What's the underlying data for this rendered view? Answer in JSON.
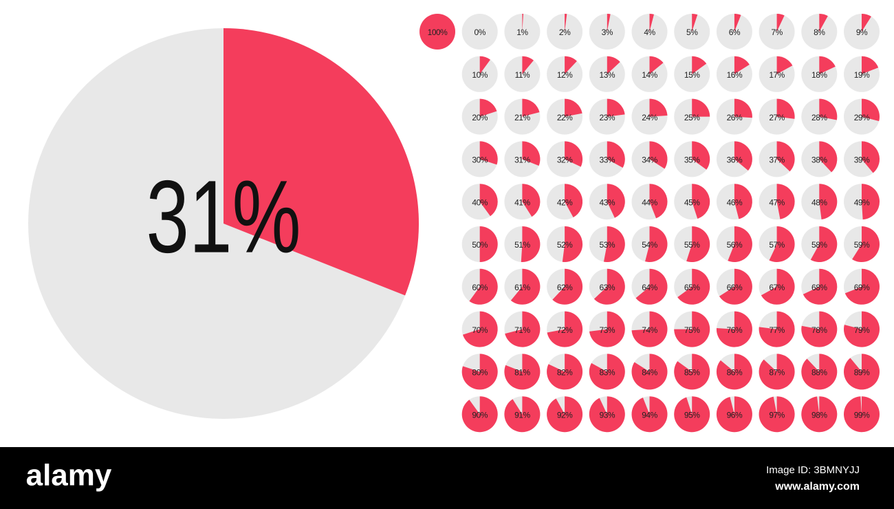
{
  "chart_data": [
    {
      "type": "pie",
      "values": [
        31
      ],
      "value_labels": [
        "31%"
      ],
      "color": "#f43d5c"
    },
    {
      "type": "pie",
      "values": [
        100
      ],
      "value_labels": [
        "100%"
      ],
      "color": "#f43d5c"
    },
    {
      "type": "pie",
      "values": [
        0
      ],
      "value_labels": [
        "0%"
      ],
      "color": "#f43d5c"
    },
    {
      "type": "pie",
      "values": [
        1
      ],
      "value_labels": [
        "1%"
      ],
      "color": "#f43d5c"
    },
    {
      "type": "pie",
      "values": [
        2
      ],
      "value_labels": [
        "2%"
      ],
      "color": "#f43d5c"
    },
    {
      "type": "pie",
      "values": [
        3
      ],
      "value_labels": [
        "3%"
      ],
      "color": "#f43d5c"
    },
    {
      "type": "pie",
      "values": [
        4
      ],
      "value_labels": [
        "4%"
      ],
      "color": "#f43d5c"
    },
    {
      "type": "pie",
      "values": [
        5
      ],
      "value_labels": [
        "5%"
      ],
      "color": "#f43d5c"
    },
    {
      "type": "pie",
      "values": [
        6
      ],
      "value_labels": [
        "6%"
      ],
      "color": "#f43d5c"
    },
    {
      "type": "pie",
      "values": [
        7
      ],
      "value_labels": [
        "7%"
      ],
      "color": "#f43d5c"
    },
    {
      "type": "pie",
      "values": [
        8
      ],
      "value_labels": [
        "8%"
      ],
      "color": "#f43d5c"
    },
    {
      "type": "pie",
      "values": [
        9
      ],
      "value_labels": [
        "9%"
      ],
      "color": "#f43d5c"
    },
    {
      "type": "pie",
      "values": [
        10
      ],
      "value_labels": [
        "10%"
      ],
      "color": "#f43d5c"
    },
    {
      "type": "pie",
      "values": [
        11
      ],
      "value_labels": [
        "11%"
      ],
      "color": "#f43d5c"
    },
    {
      "type": "pie",
      "values": [
        12
      ],
      "value_labels": [
        "12%"
      ],
      "color": "#f43d5c"
    },
    {
      "type": "pie",
      "values": [
        13
      ],
      "value_labels": [
        "13%"
      ],
      "color": "#f43d5c"
    },
    {
      "type": "pie",
      "values": [
        14
      ],
      "value_labels": [
        "14%"
      ],
      "color": "#f43d5c"
    },
    {
      "type": "pie",
      "values": [
        15
      ],
      "value_labels": [
        "15%"
      ],
      "color": "#f43d5c"
    },
    {
      "type": "pie",
      "values": [
        16
      ],
      "value_labels": [
        "16%"
      ],
      "color": "#f43d5c"
    },
    {
      "type": "pie",
      "values": [
        17
      ],
      "value_labels": [
        "17%"
      ],
      "color": "#f43d5c"
    },
    {
      "type": "pie",
      "values": [
        18
      ],
      "value_labels": [
        "18%"
      ],
      "color": "#f43d5c"
    },
    {
      "type": "pie",
      "values": [
        19
      ],
      "value_labels": [
        "19%"
      ],
      "color": "#f43d5c"
    },
    {
      "type": "pie",
      "values": [
        20
      ],
      "value_labels": [
        "20%"
      ],
      "color": "#f43d5c"
    },
    {
      "type": "pie",
      "values": [
        21
      ],
      "value_labels": [
        "21%"
      ],
      "color": "#f43d5c"
    },
    {
      "type": "pie",
      "values": [
        22
      ],
      "value_labels": [
        "22%"
      ],
      "color": "#f43d5c"
    },
    {
      "type": "pie",
      "values": [
        23
      ],
      "value_labels": [
        "23%"
      ],
      "color": "#f43d5c"
    },
    {
      "type": "pie",
      "values": [
        24
      ],
      "value_labels": [
        "24%"
      ],
      "color": "#f43d5c"
    },
    {
      "type": "pie",
      "values": [
        25
      ],
      "value_labels": [
        "25%"
      ],
      "color": "#f43d5c"
    },
    {
      "type": "pie",
      "values": [
        26
      ],
      "value_labels": [
        "26%"
      ],
      "color": "#f43d5c"
    },
    {
      "type": "pie",
      "values": [
        27
      ],
      "value_labels": [
        "27%"
      ],
      "color": "#f43d5c"
    },
    {
      "type": "pie",
      "values": [
        28
      ],
      "value_labels": [
        "28%"
      ],
      "color": "#f43d5c"
    },
    {
      "type": "pie",
      "values": [
        29
      ],
      "value_labels": [
        "29%"
      ],
      "color": "#f43d5c"
    },
    {
      "type": "pie",
      "values": [
        30
      ],
      "value_labels": [
        "30%"
      ],
      "color": "#f43d5c"
    },
    {
      "type": "pie",
      "values": [
        31
      ],
      "value_labels": [
        "31%"
      ],
      "color": "#f43d5c"
    },
    {
      "type": "pie",
      "values": [
        32
      ],
      "value_labels": [
        "32%"
      ],
      "color": "#f43d5c"
    },
    {
      "type": "pie",
      "values": [
        33
      ],
      "value_labels": [
        "33%"
      ],
      "color": "#f43d5c"
    },
    {
      "type": "pie",
      "values": [
        34
      ],
      "value_labels": [
        "34%"
      ],
      "color": "#f43d5c"
    },
    {
      "type": "pie",
      "values": [
        35
      ],
      "value_labels": [
        "35%"
      ],
      "color": "#f43d5c"
    },
    {
      "type": "pie",
      "values": [
        36
      ],
      "value_labels": [
        "36%"
      ],
      "color": "#f43d5c"
    },
    {
      "type": "pie",
      "values": [
        37
      ],
      "value_labels": [
        "37%"
      ],
      "color": "#f43d5c"
    },
    {
      "type": "pie",
      "values": [
        38
      ],
      "value_labels": [
        "38%"
      ],
      "color": "#f43d5c"
    },
    {
      "type": "pie",
      "values": [
        39
      ],
      "value_labels": [
        "39%"
      ],
      "color": "#f43d5c"
    },
    {
      "type": "pie",
      "values": [
        40
      ],
      "value_labels": [
        "40%"
      ],
      "color": "#f43d5c"
    },
    {
      "type": "pie",
      "values": [
        41
      ],
      "value_labels": [
        "41%"
      ],
      "color": "#f43d5c"
    },
    {
      "type": "pie",
      "values": [
        42
      ],
      "value_labels": [
        "42%"
      ],
      "color": "#f43d5c"
    },
    {
      "type": "pie",
      "values": [
        43
      ],
      "value_labels": [
        "43%"
      ],
      "color": "#f43d5c"
    },
    {
      "type": "pie",
      "values": [
        44
      ],
      "value_labels": [
        "44%"
      ],
      "color": "#f43d5c"
    },
    {
      "type": "pie",
      "values": [
        45
      ],
      "value_labels": [
        "45%"
      ],
      "color": "#f43d5c"
    },
    {
      "type": "pie",
      "values": [
        46
      ],
      "value_labels": [
        "46%"
      ],
      "color": "#f43d5c"
    },
    {
      "type": "pie",
      "values": [
        47
      ],
      "value_labels": [
        "47%"
      ],
      "color": "#f43d5c"
    },
    {
      "type": "pie",
      "values": [
        48
      ],
      "value_labels": [
        "48%"
      ],
      "color": "#f43d5c"
    },
    {
      "type": "pie",
      "values": [
        49
      ],
      "value_labels": [
        "49%"
      ],
      "color": "#f43d5c"
    },
    {
      "type": "pie",
      "values": [
        50
      ],
      "value_labels": [
        "50%"
      ],
      "color": "#f43d5c"
    },
    {
      "type": "pie",
      "values": [
        51
      ],
      "value_labels": [
        "51%"
      ],
      "color": "#f43d5c"
    },
    {
      "type": "pie",
      "values": [
        52
      ],
      "value_labels": [
        "52%"
      ],
      "color": "#f43d5c"
    },
    {
      "type": "pie",
      "values": [
        53
      ],
      "value_labels": [
        "53%"
      ],
      "color": "#f43d5c"
    },
    {
      "type": "pie",
      "values": [
        54
      ],
      "value_labels": [
        "54%"
      ],
      "color": "#f43d5c"
    },
    {
      "type": "pie",
      "values": [
        55
      ],
      "value_labels": [
        "55%"
      ],
      "color": "#f43d5c"
    },
    {
      "type": "pie",
      "values": [
        56
      ],
      "value_labels": [
        "56%"
      ],
      "color": "#f43d5c"
    },
    {
      "type": "pie",
      "values": [
        57
      ],
      "value_labels": [
        "57%"
      ],
      "color": "#f43d5c"
    },
    {
      "type": "pie",
      "values": [
        58
      ],
      "value_labels": [
        "58%"
      ],
      "color": "#f43d5c"
    },
    {
      "type": "pie",
      "values": [
        59
      ],
      "value_labels": [
        "59%"
      ],
      "color": "#f43d5c"
    },
    {
      "type": "pie",
      "values": [
        60
      ],
      "value_labels": [
        "60%"
      ],
      "color": "#f43d5c"
    },
    {
      "type": "pie",
      "values": [
        61
      ],
      "value_labels": [
        "61%"
      ],
      "color": "#f43d5c"
    },
    {
      "type": "pie",
      "values": [
        62
      ],
      "value_labels": [
        "62%"
      ],
      "color": "#f43d5c"
    },
    {
      "type": "pie",
      "values": [
        63
      ],
      "value_labels": [
        "63%"
      ],
      "color": "#f43d5c"
    },
    {
      "type": "pie",
      "values": [
        64
      ],
      "value_labels": [
        "64%"
      ],
      "color": "#f43d5c"
    },
    {
      "type": "pie",
      "values": [
        65
      ],
      "value_labels": [
        "65%"
      ],
      "color": "#f43d5c"
    },
    {
      "type": "pie",
      "values": [
        66
      ],
      "value_labels": [
        "66%"
      ],
      "color": "#f43d5c"
    },
    {
      "type": "pie",
      "values": [
        67
      ],
      "value_labels": [
        "67%"
      ],
      "color": "#f43d5c"
    },
    {
      "type": "pie",
      "values": [
        68
      ],
      "value_labels": [
        "68%"
      ],
      "color": "#f43d5c"
    },
    {
      "type": "pie",
      "values": [
        69
      ],
      "value_labels": [
        "69%"
      ],
      "color": "#f43d5c"
    },
    {
      "type": "pie",
      "values": [
        70
      ],
      "value_labels": [
        "70%"
      ],
      "color": "#f43d5c"
    },
    {
      "type": "pie",
      "values": [
        71
      ],
      "value_labels": [
        "71%"
      ],
      "color": "#f43d5c"
    },
    {
      "type": "pie",
      "values": [
        72
      ],
      "value_labels": [
        "72%"
      ],
      "color": "#f43d5c"
    },
    {
      "type": "pie",
      "values": [
        73
      ],
      "value_labels": [
        "73%"
      ],
      "color": "#f43d5c"
    },
    {
      "type": "pie",
      "values": [
        74
      ],
      "value_labels": [
        "74%"
      ],
      "color": "#f43d5c"
    },
    {
      "type": "pie",
      "values": [
        75
      ],
      "value_labels": [
        "75%"
      ],
      "color": "#f43d5c"
    },
    {
      "type": "pie",
      "values": [
        76
      ],
      "value_labels": [
        "76%"
      ],
      "color": "#f43d5c"
    },
    {
      "type": "pie",
      "values": [
        77
      ],
      "value_labels": [
        "77%"
      ],
      "color": "#f43d5c"
    },
    {
      "type": "pie",
      "values": [
        78
      ],
      "value_labels": [
        "78%"
      ],
      "color": "#f43d5c"
    },
    {
      "type": "pie",
      "values": [
        79
      ],
      "value_labels": [
        "79%"
      ],
      "color": "#f43d5c"
    },
    {
      "type": "pie",
      "values": [
        80
      ],
      "value_labels": [
        "80%"
      ],
      "color": "#f43d5c"
    },
    {
      "type": "pie",
      "values": [
        81
      ],
      "value_labels": [
        "81%"
      ],
      "color": "#f43d5c"
    },
    {
      "type": "pie",
      "values": [
        82
      ],
      "value_labels": [
        "82%"
      ],
      "color": "#f43d5c"
    },
    {
      "type": "pie",
      "values": [
        83
      ],
      "value_labels": [
        "83%"
      ],
      "color": "#f43d5c"
    },
    {
      "type": "pie",
      "values": [
        84
      ],
      "value_labels": [
        "84%"
      ],
      "color": "#f43d5c"
    },
    {
      "type": "pie",
      "values": [
        85
      ],
      "value_labels": [
        "85%"
      ],
      "color": "#f43d5c"
    },
    {
      "type": "pie",
      "values": [
        86
      ],
      "value_labels": [
        "86%"
      ],
      "color": "#f43d5c"
    },
    {
      "type": "pie",
      "values": [
        87
      ],
      "value_labels": [
        "87%"
      ],
      "color": "#f43d5c"
    },
    {
      "type": "pie",
      "values": [
        88
      ],
      "value_labels": [
        "88%"
      ],
      "color": "#f43d5c"
    },
    {
      "type": "pie",
      "values": [
        89
      ],
      "value_labels": [
        "89%"
      ],
      "color": "#f43d5c"
    },
    {
      "type": "pie",
      "values": [
        90
      ],
      "value_labels": [
        "90%"
      ],
      "color": "#f43d5c"
    },
    {
      "type": "pie",
      "values": [
        91
      ],
      "value_labels": [
        "91%"
      ],
      "color": "#f43d5c"
    },
    {
      "type": "pie",
      "values": [
        92
      ],
      "value_labels": [
        "92%"
      ],
      "color": "#f43d5c"
    },
    {
      "type": "pie",
      "values": [
        93
      ],
      "value_labels": [
        "93%"
      ],
      "color": "#f43d5c"
    },
    {
      "type": "pie",
      "values": [
        94
      ],
      "value_labels": [
        "94%"
      ],
      "color": "#f43d5c"
    },
    {
      "type": "pie",
      "values": [
        95
      ],
      "value_labels": [
        "95%"
      ],
      "color": "#f43d5c"
    },
    {
      "type": "pie",
      "values": [
        96
      ],
      "value_labels": [
        "96%"
      ],
      "color": "#f43d5c"
    },
    {
      "type": "pie",
      "values": [
        97
      ],
      "value_labels": [
        "97%"
      ],
      "color": "#f43d5c"
    },
    {
      "type": "pie",
      "values": [
        98
      ],
      "value_labels": [
        "98%"
      ],
      "color": "#f43d5c"
    },
    {
      "type": "pie",
      "values": [
        99
      ],
      "value_labels": [
        "99%"
      ],
      "color": "#f43d5c"
    }
  ],
  "footer": {
    "logo": "alamy",
    "image_id": "Image ID: 3BMNYJJ",
    "url": "www.alamy.com"
  }
}
